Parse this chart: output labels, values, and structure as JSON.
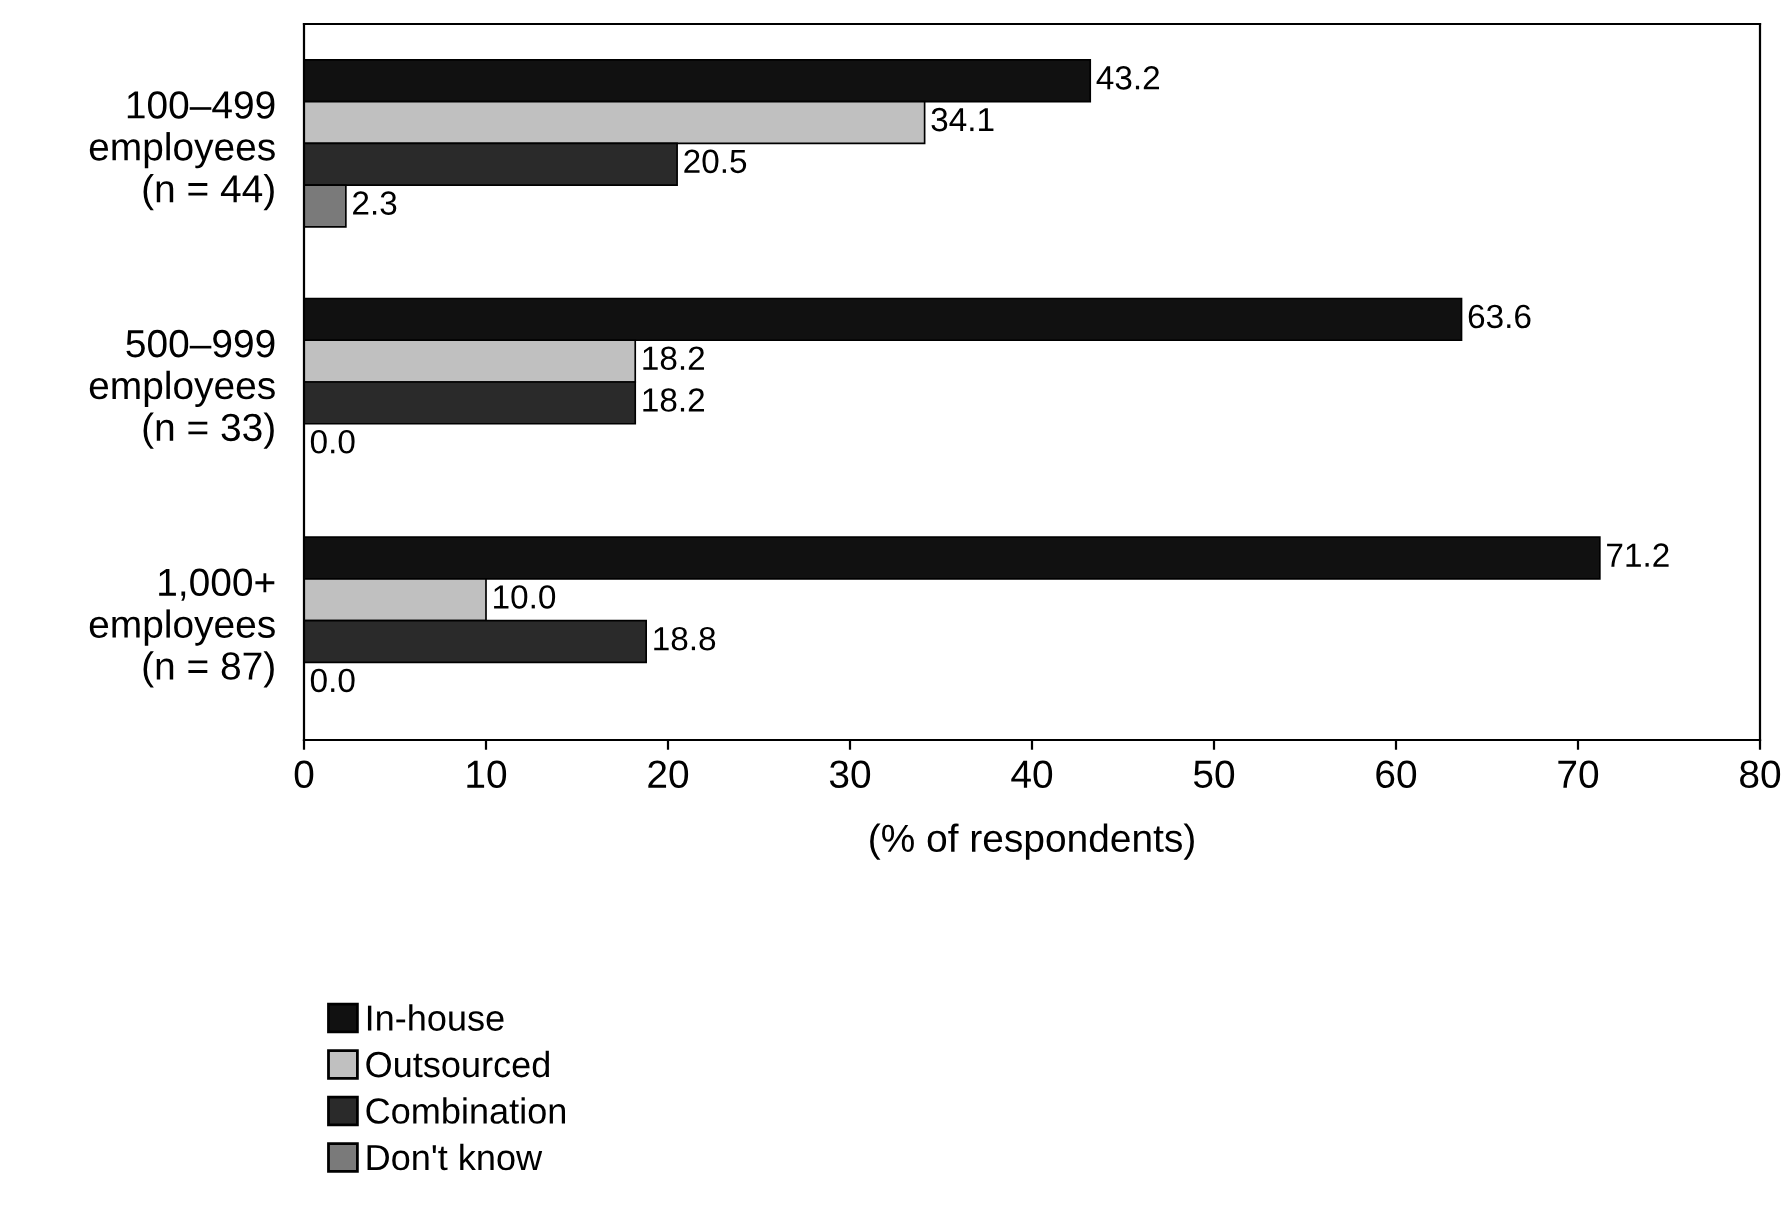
{
  "chart_data": {
    "type": "bar",
    "orientation": "horizontal",
    "categories": [
      "100–499\nemployees\n(n = 44)",
      "500–999\nemployees\n(n = 33)",
      "1,000+\nemployees\n(n = 87)"
    ],
    "series": [
      {
        "name": "In-house",
        "color": "#111111",
        "values": [
          43.2,
          63.6,
          71.2
        ],
        "value_labels": [
          "43.2",
          "63.6",
          "71.2"
        ]
      },
      {
        "name": "Outsourced",
        "color": "#c0c0c0",
        "values": [
          34.1,
          18.2,
          10.0
        ],
        "value_labels": [
          "34.1",
          "18.2",
          "10.0"
        ]
      },
      {
        "name": "Combination",
        "color": "#2a2a2a",
        "values": [
          20.5,
          18.2,
          18.8
        ],
        "value_labels": [
          "20.5",
          "18.2",
          "18.8"
        ]
      },
      {
        "name": "Don't know",
        "color": "#7a7a7a",
        "values": [
          2.3,
          0.0,
          0.0
        ],
        "value_labels": [
          "2.3",
          "0.0",
          "0.0"
        ]
      }
    ],
    "xlabel": "(% of respondents)",
    "xlim": [
      0,
      80
    ],
    "xticks": [
      0,
      10,
      20,
      30,
      40,
      50,
      60,
      70,
      80
    ],
    "grid": false,
    "legend": "bottom left"
  }
}
